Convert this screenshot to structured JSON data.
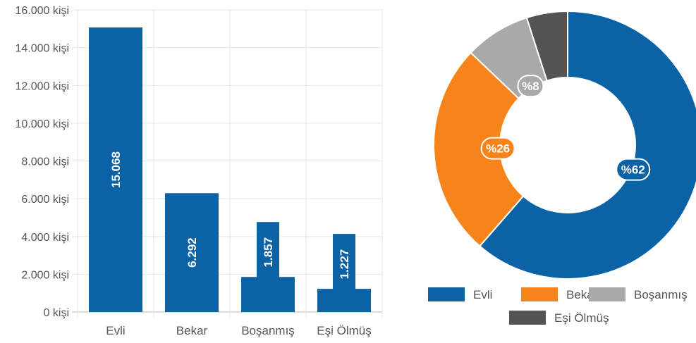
{
  "chart_data": [
    {
      "type": "bar",
      "categories": [
        "Evli",
        "Bekar",
        "Boşanmış",
        "Eşi Ölmüş"
      ],
      "values": [
        15068,
        6292,
        1857,
        1227
      ],
      "value_labels": [
        "15.068",
        "6.292",
        "1.857",
        "1.227"
      ],
      "ylim": [
        0,
        16000
      ],
      "y_ticks": [
        {
          "value": 0,
          "label": "0 kişi"
        },
        {
          "value": 2000,
          "label": "2.000 kişi"
        },
        {
          "value": 4000,
          "label": "4.000 kişi"
        },
        {
          "value": 6000,
          "label": "6.000 kişi"
        },
        {
          "value": 8000,
          "label": "8.000 kişi"
        },
        {
          "value": 10000,
          "label": "10.000 kişi"
        },
        {
          "value": 12000,
          "label": "12.000 kişi"
        },
        {
          "value": 14000,
          "label": "14.000 kişi"
        },
        {
          "value": 16000,
          "label": "16.000 kişi"
        }
      ],
      "grid": true,
      "color": "#0b62a4"
    },
    {
      "type": "pie",
      "donut": true,
      "slices": [
        {
          "name": "Evli",
          "percent": 62,
          "label": "%62",
          "color": "#0b62a4"
        },
        {
          "name": "Bekar",
          "percent": 26,
          "label": "%26",
          "color": "#f7841a"
        },
        {
          "name": "Boşanmış",
          "percent": 8,
          "label": "%8",
          "color": "#a9a9a9"
        },
        {
          "name": "Eşi Ölmüş",
          "percent": 5,
          "label": "",
          "color": "#545454"
        }
      ],
      "legend_position": "bottom"
    }
  ]
}
